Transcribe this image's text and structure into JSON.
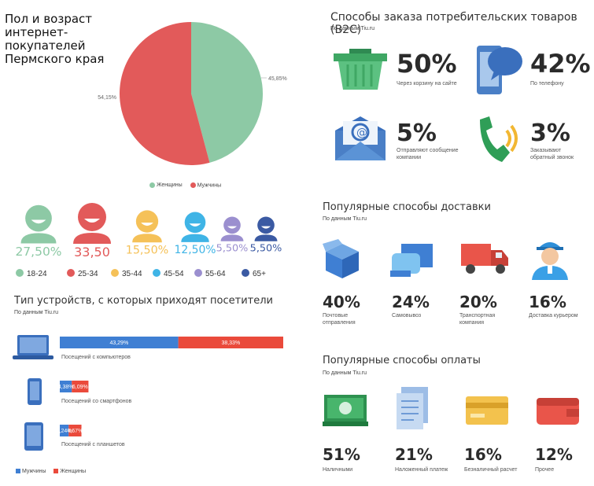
{
  "pie": {
    "title": "Пол и возраст интернет-покупателей Пермского края",
    "title_lines": [
      "Пол и возраст интернет-",
      "покупателей",
      "Пермского края"
    ],
    "legend": [
      "Женщины",
      "Мужчины"
    ]
  },
  "b2c": {
    "title": "Способы заказа потребительских товаров (B2C)",
    "source": "По данным Tiu.ru",
    "items": [
      {
        "pct": "50%",
        "label1": "Через корзину на сайте",
        "label2": ""
      },
      {
        "pct": "42%",
        "label1": "По телефону",
        "label2": ""
      },
      {
        "pct": "5%",
        "label1": "Отправляют сообщение",
        "label2": "компании"
      },
      {
        "pct": "3%",
        "label1": "Заказывают",
        "label2": "обратный звонок"
      }
    ]
  },
  "ages": {
    "values": [
      "27,50%",
      "33,50",
      "15,50%",
      "12,50%",
      "5,50%",
      "5,50%"
    ],
    "labels": [
      "18-24",
      "25-34",
      "35-44",
      "45-54",
      "55-64",
      "65+"
    ]
  },
  "devices": {
    "title": "Тип устройств, с которых приходят посетители",
    "source": "По данным Tiu.ru",
    "rows": [
      {
        "label": "Посещений с компьютеров",
        "men": "43,29%",
        "women": "38,33%"
      },
      {
        "label": "Посещений со смартфонов",
        "men": "4,38%",
        "women": "6,09%"
      },
      {
        "label": "Посещений с планшетов",
        "men": "3,24%",
        "women": "4,67%"
      }
    ],
    "legend": [
      "Мужчины",
      "Женщины"
    ]
  },
  "delivery": {
    "title": "Популярные способы доставки",
    "source": "По данным Tiu.ru",
    "items": [
      {
        "pct": "40%",
        "label1": "Почтовые",
        "label2": "отправления"
      },
      {
        "pct": "24%",
        "label1": "Самовывоз",
        "label2": ""
      },
      {
        "pct": "20%",
        "label1": "Транспортная",
        "label2": "компания"
      },
      {
        "pct": "16%",
        "label1": "Доставка курьером",
        "label2": ""
      }
    ]
  },
  "payment": {
    "title": "Популярные способы оплаты",
    "source": "По данным Tiu.ru",
    "items": [
      {
        "pct": "51%",
        "label": "Наличными"
      },
      {
        "pct": "21%",
        "label": "Наложенный платеж"
      },
      {
        "pct": "16%",
        "label": "Безналичный расчет"
      },
      {
        "pct": "12%",
        "label": "Прочее"
      }
    ]
  },
  "colors": {
    "women_green": "#8dc9a5",
    "men_red": "#e25a5a",
    "bar_blue": "#3f7fd3",
    "bar_red": "#ea4a3b",
    "age_colors": [
      "#8dc9a5",
      "#e25a5a",
      "#f5c158",
      "#3fb4e6",
      "#9b8fcf",
      "#3b5aa3"
    ]
  },
  "chart_data": [
    {
      "type": "pie",
      "labels": [
        "Женщины",
        "Мужчины"
      ],
      "values": [
        45.85,
        54.15
      ],
      "data_labels": [
        "45,85%",
        "54,15%"
      ],
      "legend_position": "bottom"
    },
    {
      "type": "bar",
      "categories": [
        "18-24",
        "25-34",
        "35-44",
        "45-54",
        "55-64",
        "65+"
      ],
      "values": [
        27.5,
        33.5,
        15.5,
        12.5,
        5.5,
        5.5
      ]
    },
    {
      "type": "bar",
      "orientation": "horizontal-stacked",
      "categories": [
        "Посещений с компьютеров",
        "Посещений со смартфонов",
        "Посещений с планшетов"
      ],
      "series": [
        {
          "name": "Мужчины",
          "values": [
            43.29,
            4.38,
            3.24
          ]
        },
        {
          "name": "Женщины",
          "values": [
            38.33,
            6.09,
            4.67
          ]
        }
      ],
      "legend_position": "bottom-left"
    },
    {
      "type": "bar",
      "categories": [
        "Через корзину на сайте",
        "По телефону",
        "Отправляют сообщение компании",
        "Заказывают обратный звонок"
      ],
      "values": [
        50,
        42,
        5,
        3
      ]
    },
    {
      "type": "bar",
      "categories": [
        "Почтовые отправления",
        "Самовывоз",
        "Транспортная компания",
        "Доставка курьером"
      ],
      "values": [
        40,
        24,
        20,
        16
      ]
    },
    {
      "type": "bar",
      "categories": [
        "Наличными",
        "Наложенный платеж",
        "Безналичный расчет",
        "Прочее"
      ],
      "values": [
        51,
        21,
        16,
        12
      ]
    }
  ]
}
